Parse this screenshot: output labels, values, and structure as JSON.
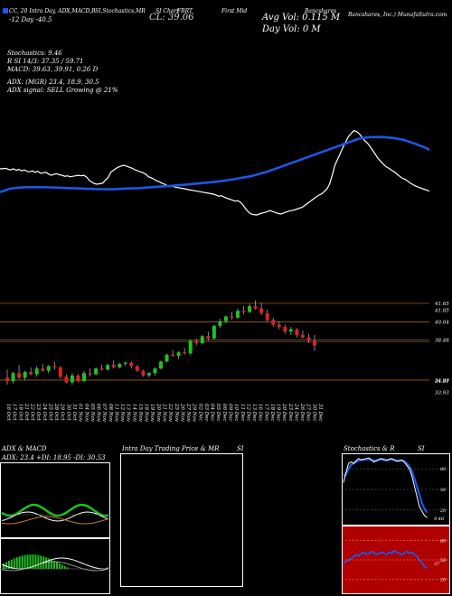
{
  "header": {
    "indicator_tabs": [
      "CC, 20 Intra Day, ADX,MACD,B",
      "SI,Stochastics,MR",
      "SI Chart",
      "FBRT",
      "First Mid",
      "Bancshares",
      "Bancshares, Inc.) MunafaSutra.com"
    ],
    "left_vals": "-12 Day   -40.5",
    "close_label": "CL: 39.06",
    "avg_vol": "Avg Vol: 0.115 M",
    "day_vol": "Day Vol: 0   M"
  },
  "indicators": {
    "stochastics": "Stochastics: 9.46",
    "si": "R                SI 14/3: 37.35 / 59.71",
    "macd": "MACD: 39.63,  39.91,  0.26   D",
    "adx": "ADX:                       (MGR) 23.4,  18.9,  30.5",
    "signal": "ADX  signal: SELL  Growing @ 21%"
  },
  "colors": {
    "accent": "#1e56e8",
    "up": "#22c022",
    "down": "#e02020",
    "level": "#a06010",
    "stoch_bg": "#b00000"
  },
  "price_levels": [
    {
      "label": "41.65"
    },
    {
      "label": "41.05"
    },
    {
      "label": "40.04"
    },
    {
      "label": "38.48"
    },
    {
      "label": "34.99"
    },
    {
      "label": "34.91"
    },
    {
      "label": "33.93"
    }
  ],
  "date_labels": [
    "16 Oct",
    "17 Oct",
    "18 Oct",
    "21 Oct",
    "22 Oct",
    "23 Oct",
    "24 Oct",
    "25 Oct",
    "28 Oct",
    "29 Oct",
    "30 Oct",
    "31 Oct",
    "01 Nov",
    "04 Nov",
    "05 Nov",
    "06 Nov",
    "07 Nov",
    "08 Nov",
    "11 Nov",
    "12 Nov",
    "13 Nov",
    "14 Nov",
    "15 Nov",
    "18 Nov",
    "19 Nov",
    "20 Nov",
    "21 Nov",
    "22 Nov",
    "25 Nov",
    "26 Nov",
    "27 Nov",
    "29 Nov",
    "02 Dec",
    "03 Dec",
    "04 Dec",
    "05 Dec",
    "06 Dec",
    "09 Dec",
    "10 Dec",
    "11 Dec",
    "12 Dec",
    "13 Dec",
    "16 Dec",
    "17 Dec",
    "18 Dec",
    "19 Dec",
    "20 Dec",
    "23 Dec",
    "24 Dec",
    "26 Dec",
    "27 Dec",
    "30 Dec",
    "31 Dec"
  ],
  "panels": {
    "adx_title": "ADX  & MACD",
    "adx_vals": "ADX: 23.4   +DI: 18.95  -DI: 30.53",
    "intra_title": "Intra  Day Trading Price  & MR",
    "si_title": "SI",
    "stoch_title": "Stochastics & R",
    "stoch_si": "SI",
    "stoch_ticks": [
      "80",
      "50",
      "20"
    ],
    "rsi_ticks": [
      "80",
      "50",
      "20"
    ],
    "stoch_last": "9.46",
    "rsi_last": "37"
  },
  "chart_data": {
    "type": "candlestick",
    "ylim": [
      33.5,
      42.5
    ],
    "candles": [
      [
        35.2,
        35.9,
        34.6,
        34.9
      ],
      [
        34.9,
        35.7,
        34.7,
        35.6
      ],
      [
        35.6,
        36.3,
        35.1,
        35.2
      ],
      [
        35.2,
        35.8,
        35.0,
        35.7
      ],
      [
        35.7,
        36.1,
        35.4,
        35.5
      ],
      [
        35.5,
        36.2,
        35.3,
        36.0
      ],
      [
        36.0,
        36.4,
        35.7,
        35.8
      ],
      [
        35.8,
        36.3,
        35.6,
        36.2
      ],
      [
        36.2,
        36.6,
        35.9,
        36.1
      ],
      [
        36.1,
        36.2,
        35.1,
        35.3
      ],
      [
        35.3,
        35.5,
        34.7,
        34.8
      ],
      [
        34.8,
        35.6,
        34.6,
        35.4
      ],
      [
        35.4,
        35.5,
        34.8,
        34.9
      ],
      [
        34.9,
        35.8,
        34.8,
        35.6
      ],
      [
        35.6,
        36.0,
        35.3,
        35.5
      ],
      [
        35.5,
        36.1,
        35.4,
        36.0
      ],
      [
        36.0,
        36.3,
        35.8,
        35.9
      ],
      [
        35.9,
        36.4,
        35.8,
        36.3
      ],
      [
        36.3,
        36.7,
        36.0,
        36.1
      ],
      [
        36.1,
        36.5,
        36.0,
        36.4
      ],
      [
        36.4,
        36.6,
        36.2,
        36.5
      ],
      [
        36.5,
        36.6,
        36.0,
        36.2
      ],
      [
        36.2,
        36.3,
        35.7,
        35.8
      ],
      [
        35.8,
        35.9,
        35.3,
        35.4
      ],
      [
        35.4,
        35.7,
        35.2,
        35.6
      ],
      [
        35.6,
        36.1,
        35.4,
        36.0
      ],
      [
        36.0,
        36.7,
        35.9,
        36.6
      ],
      [
        36.6,
        37.3,
        36.5,
        37.2
      ],
      [
        37.2,
        37.6,
        37.0,
        37.1
      ],
      [
        37.1,
        37.5,
        36.8,
        37.4
      ],
      [
        37.4,
        37.8,
        37.2,
        37.3
      ],
      [
        37.3,
        38.5,
        37.2,
        38.4
      ],
      [
        38.4,
        38.6,
        38.0,
        38.2
      ],
      [
        38.2,
        38.9,
        38.1,
        38.8
      ],
      [
        38.8,
        39.2,
        38.4,
        38.6
      ],
      [
        38.6,
        39.8,
        38.5,
        39.7
      ],
      [
        39.7,
        40.3,
        39.5,
        40.1
      ],
      [
        40.1,
        40.6,
        39.9,
        40.5
      ],
      [
        40.5,
        40.9,
        40.2,
        40.4
      ],
      [
        40.4,
        41.2,
        40.3,
        41.0
      ],
      [
        41.0,
        41.4,
        40.7,
        40.9
      ],
      [
        40.9,
        41.6,
        40.8,
        41.4
      ],
      [
        41.4,
        41.9,
        41.1,
        41.2
      ],
      [
        41.2,
        41.7,
        40.6,
        40.8
      ],
      [
        40.8,
        41.1,
        40.0,
        40.2
      ],
      [
        40.2,
        40.4,
        39.6,
        39.8
      ],
      [
        39.8,
        40.1,
        39.4,
        39.6
      ],
      [
        39.6,
        39.8,
        39.0,
        39.2
      ],
      [
        39.2,
        39.6,
        38.9,
        39.4
      ],
      [
        39.4,
        39.5,
        38.7,
        38.9
      ],
      [
        38.9,
        39.3,
        38.6,
        38.7
      ],
      [
        38.7,
        39.0,
        38.2,
        38.4
      ],
      [
        38.4,
        38.9,
        37.5,
        38.0
      ]
    ],
    "close_line": [
      51,
      51,
      52,
      50,
      49,
      51,
      48,
      50,
      47,
      49,
      46,
      45,
      47,
      44,
      46,
      42,
      43,
      44,
      40,
      38,
      40,
      41,
      39,
      38,
      36,
      37,
      35,
      36,
      37,
      38,
      37,
      38,
      35,
      28,
      24,
      21,
      20,
      21,
      22,
      28,
      33,
      44,
      48,
      52,
      55,
      57,
      58,
      56,
      54,
      52,
      49,
      47,
      45,
      43,
      40,
      35,
      33,
      30,
      27,
      25,
      22,
      20,
      17,
      15,
      16,
      14,
      13,
      12,
      11,
      10,
      9,
      8,
      7,
      6,
      5,
      4,
      3,
      2,
      1,
      0,
      -2,
      -4,
      -3,
      -6,
      -8,
      -10,
      -12,
      -14,
      -13,
      -16,
      -22,
      -30,
      -36,
      -40,
      -41,
      -42,
      -40,
      -38,
      -37,
      -35,
      -33,
      -35,
      -37,
      -39,
      -40,
      -38,
      -36,
      -34,
      -33,
      -32,
      -30,
      -28,
      -26,
      -22,
      -18,
      -14,
      -10,
      -6,
      -2,
      0,
      5,
      10,
      20,
      38,
      58,
      70,
      82,
      94,
      105,
      116,
      122,
      128,
      126,
      122,
      115,
      108,
      103,
      96,
      88,
      80,
      72,
      66,
      60,
      55,
      52,
      48,
      45,
      40,
      36,
      32,
      30,
      26,
      22,
      19,
      16,
      14,
      12,
      10,
      8,
      6
    ],
    "ma_line": [
      4,
      6,
      8,
      10,
      11,
      12,
      12.5,
      13,
      13.5,
      13.8,
      14,
      14,
      14,
      14,
      14,
      14,
      14,
      13.8,
      13.6,
      13.4,
      13.2,
      13,
      12.8,
      12.6,
      12.4,
      12.2,
      12,
      11.8,
      11.6,
      11.4,
      11.2,
      11,
      10.8,
      10.6,
      10.4,
      10.2,
      10,
      10,
      10,
      10,
      10,
      10,
      10.2,
      10.4,
      10.8,
      11,
      11.2,
      11.4,
      11.6,
      11.8,
      12,
      12.4,
      12.8,
      13.2,
      13.6,
      14,
      14.4,
      14.8,
      15.2,
      15.6,
      16,
      16.4,
      16.8,
      17.2,
      17.6,
      18,
      18.5,
      19,
      19.5,
      20,
      20.5,
      21,
      21.5,
      22,
      22.5,
      23,
      23.6,
      24.2,
      24.8,
      25.4,
      26,
      26.8,
      27.6,
      28.4,
      29.2,
      30,
      31,
      32,
      33,
      34,
      35,
      36,
      37.5,
      39,
      40.5,
      42,
      43.5,
      45,
      47,
      49,
      51,
      53,
      55,
      57,
      59,
      61,
      63,
      65,
      67,
      69,
      71,
      73,
      75,
      77,
      79,
      81,
      83,
      85,
      87,
      89,
      91,
      93,
      95,
      97,
      99,
      101,
      103,
      105,
      107,
      109,
      111,
      112,
      113,
      114,
      114.5,
      115,
      115,
      115,
      115,
      115,
      114.5,
      114,
      113.5,
      113,
      112,
      111,
      110,
      109,
      107,
      105,
      103,
      101,
      99,
      97,
      95,
      92,
      89
    ]
  }
}
